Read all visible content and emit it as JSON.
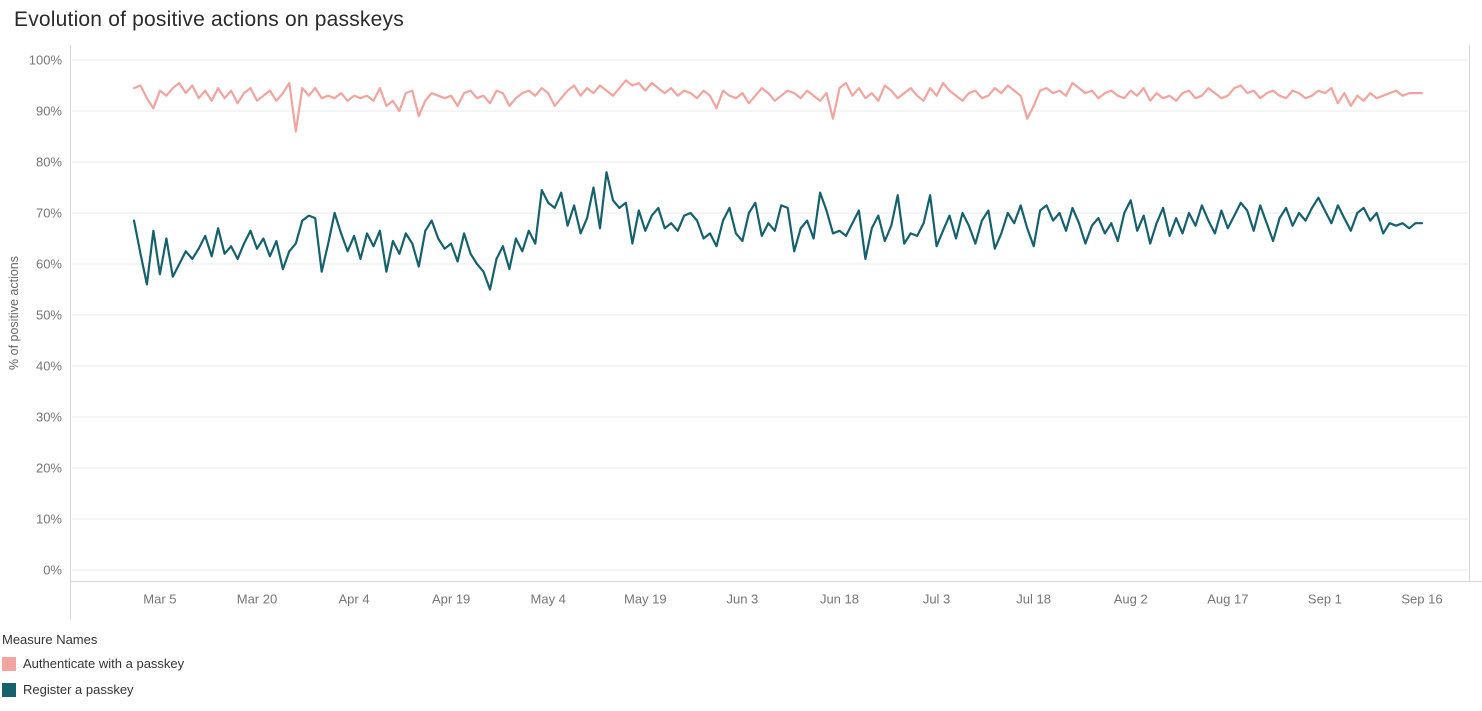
{
  "page": {
    "background": "#ffffff"
  },
  "colors": {
    "grid": "#e8e8e8",
    "axis_border": "#d7d7d7",
    "tick_text": "#767676",
    "title_text": "#2b2b2b",
    "legend_text": "#333333"
  },
  "chart_data": {
    "type": "line",
    "title": "Evolution of positive actions on passkeys",
    "xlabel": "",
    "ylabel": "% of positive actions",
    "ylim": [
      0,
      100
    ],
    "grid": "horizontal",
    "legend_title": "Measure Names",
    "legend_position": "bottom-left",
    "y_tick_values": [
      0,
      10,
      20,
      30,
      40,
      50,
      60,
      70,
      80,
      90,
      100
    ],
    "y_tick_labels": [
      "0%",
      "10%",
      "20%",
      "30%",
      "40%",
      "50%",
      "60%",
      "70%",
      "80%",
      "90%",
      "100%"
    ],
    "x_tick_labels": [
      "Mar 5",
      "Mar 20",
      "Apr 4",
      "Apr 19",
      "May 4",
      "May 19",
      "Jun 3",
      "Jun 18",
      "Jul 3",
      "Jul 18",
      "Aug 2",
      "Aug 17",
      "Sep 1",
      "Sep 16"
    ],
    "x_tick_point_index": [
      4,
      19,
      34,
      49,
      64,
      79,
      94,
      109,
      124,
      139,
      154,
      169,
      184,
      199
    ],
    "num_points": 200,
    "point_interval": "daily",
    "series": [
      {
        "name": "Authenticate with a passkey",
        "color": "#f2a49e",
        "values": [
          94.5,
          95,
          92.5,
          90.5,
          94,
          93,
          94.5,
          95.5,
          93.5,
          95,
          92.5,
          94,
          92,
          94.5,
          92.5,
          94,
          91.5,
          93.5,
          94.5,
          92,
          93,
          94,
          92,
          93.5,
          95.5,
          86,
          94.5,
          93,
          94.5,
          92.5,
          93,
          92.5,
          93.5,
          92,
          93,
          92.5,
          93,
          92,
          94.5,
          91,
          92,
          90,
          93.5,
          94,
          89,
          92,
          93.5,
          93,
          92.5,
          93,
          91,
          93.5,
          94,
          92.5,
          93,
          91.5,
          94,
          93.5,
          91,
          92.5,
          93.5,
          94,
          93,
          94.5,
          93.5,
          91,
          92.5,
          94,
          95,
          93,
          94.5,
          93.5,
          95,
          94,
          93,
          94.5,
          96,
          95,
          95.5,
          94,
          95.5,
          94.5,
          93.5,
          94.5,
          93,
          94,
          93.5,
          92.5,
          94,
          93,
          90.5,
          94,
          93,
          92.5,
          93.5,
          91.5,
          93,
          94.5,
          93.5,
          92,
          93,
          94,
          93.5,
          92.5,
          94,
          93,
          92,
          93.5,
          88.5,
          94.5,
          95.5,
          93,
          94.5,
          92.5,
          93.5,
          92,
          95,
          94,
          92.5,
          93.5,
          94.5,
          93,
          92,
          94.5,
          93,
          95.5,
          94,
          93,
          92,
          93.5,
          94,
          92.5,
          93,
          94.5,
          93.5,
          95,
          94,
          93,
          88.5,
          91,
          94,
          94.5,
          93.5,
          94,
          93,
          95.5,
          94.5,
          93.5,
          94,
          92.5,
          93.5,
          94,
          93,
          92.5,
          94,
          93,
          94.5,
          92,
          93.5,
          92.5,
          93,
          92,
          93.5,
          94,
          92.5,
          93,
          94.5,
          93.5,
          92.5,
          93,
          94.5,
          95,
          93.5,
          94,
          92.5,
          93.5,
          94,
          93,
          92.5,
          94,
          93.5,
          92.5,
          93,
          94,
          93.5,
          94.5,
          91.5,
          93.5,
          91,
          93,
          92,
          93.5,
          92.5,
          93,
          93.5,
          94,
          93,
          93.5,
          93.5,
          93.5
        ]
      },
      {
        "name": "Register a passkey",
        "color": "#15616d",
        "values": [
          68.5,
          62,
          56,
          66.5,
          58,
          65,
          57.5,
          60,
          62.5,
          61,
          63,
          65.5,
          61.5,
          67,
          62,
          63.5,
          61,
          64,
          66.5,
          63,
          65,
          61.5,
          64.5,
          59,
          62.5,
          64,
          68.5,
          69.5,
          69,
          58.5,
          64,
          70,
          66,
          62.5,
          65.5,
          61,
          66,
          63.5,
          66.5,
          58.5,
          64.5,
          62,
          66,
          64,
          59.5,
          66.5,
          68.5,
          65,
          63,
          64,
          60.5,
          66,
          62,
          60,
          58.5,
          55,
          61,
          63.5,
          59,
          65,
          62.5,
          66.5,
          64,
          74.5,
          72,
          71,
          74,
          67.5,
          71.5,
          66,
          69,
          75,
          67,
          78,
          72.5,
          71,
          72,
          64,
          70.5,
          66.5,
          69.5,
          71,
          67,
          68,
          66.5,
          69.5,
          70,
          68.5,
          65,
          66,
          63.5,
          68.5,
          71,
          66,
          64.5,
          70,
          72,
          65.5,
          68,
          66.5,
          71.5,
          71,
          62.5,
          67,
          68.5,
          65,
          74,
          70.5,
          66,
          66.5,
          65.5,
          68,
          70.5,
          61,
          67,
          69.5,
          64.5,
          67.5,
          73.5,
          64,
          66,
          65.5,
          68,
          73.5,
          63.5,
          66.5,
          69.5,
          65,
          70,
          67.5,
          64,
          68.5,
          70.5,
          63,
          66,
          70,
          68,
          71.5,
          67,
          63.5,
          70.5,
          71.5,
          68.5,
          70,
          66.5,
          71,
          68,
          64,
          67.5,
          69,
          66,
          68,
          64.5,
          70,
          72.5,
          66.5,
          69.5,
          64,
          68,
          71,
          65.5,
          69,
          66,
          70,
          67.5,
          71.5,
          68.5,
          66,
          70.5,
          67,
          69.5,
          72,
          70.5,
          66.5,
          71.5,
          68,
          64.5,
          69,
          71,
          67.5,
          70,
          68.5,
          71,
          73,
          70.5,
          68,
          71.5,
          69,
          66.5,
          70,
          71,
          68.5,
          70,
          66,
          68,
          67.5,
          68,
          67,
          68,
          68
        ]
      }
    ]
  }
}
